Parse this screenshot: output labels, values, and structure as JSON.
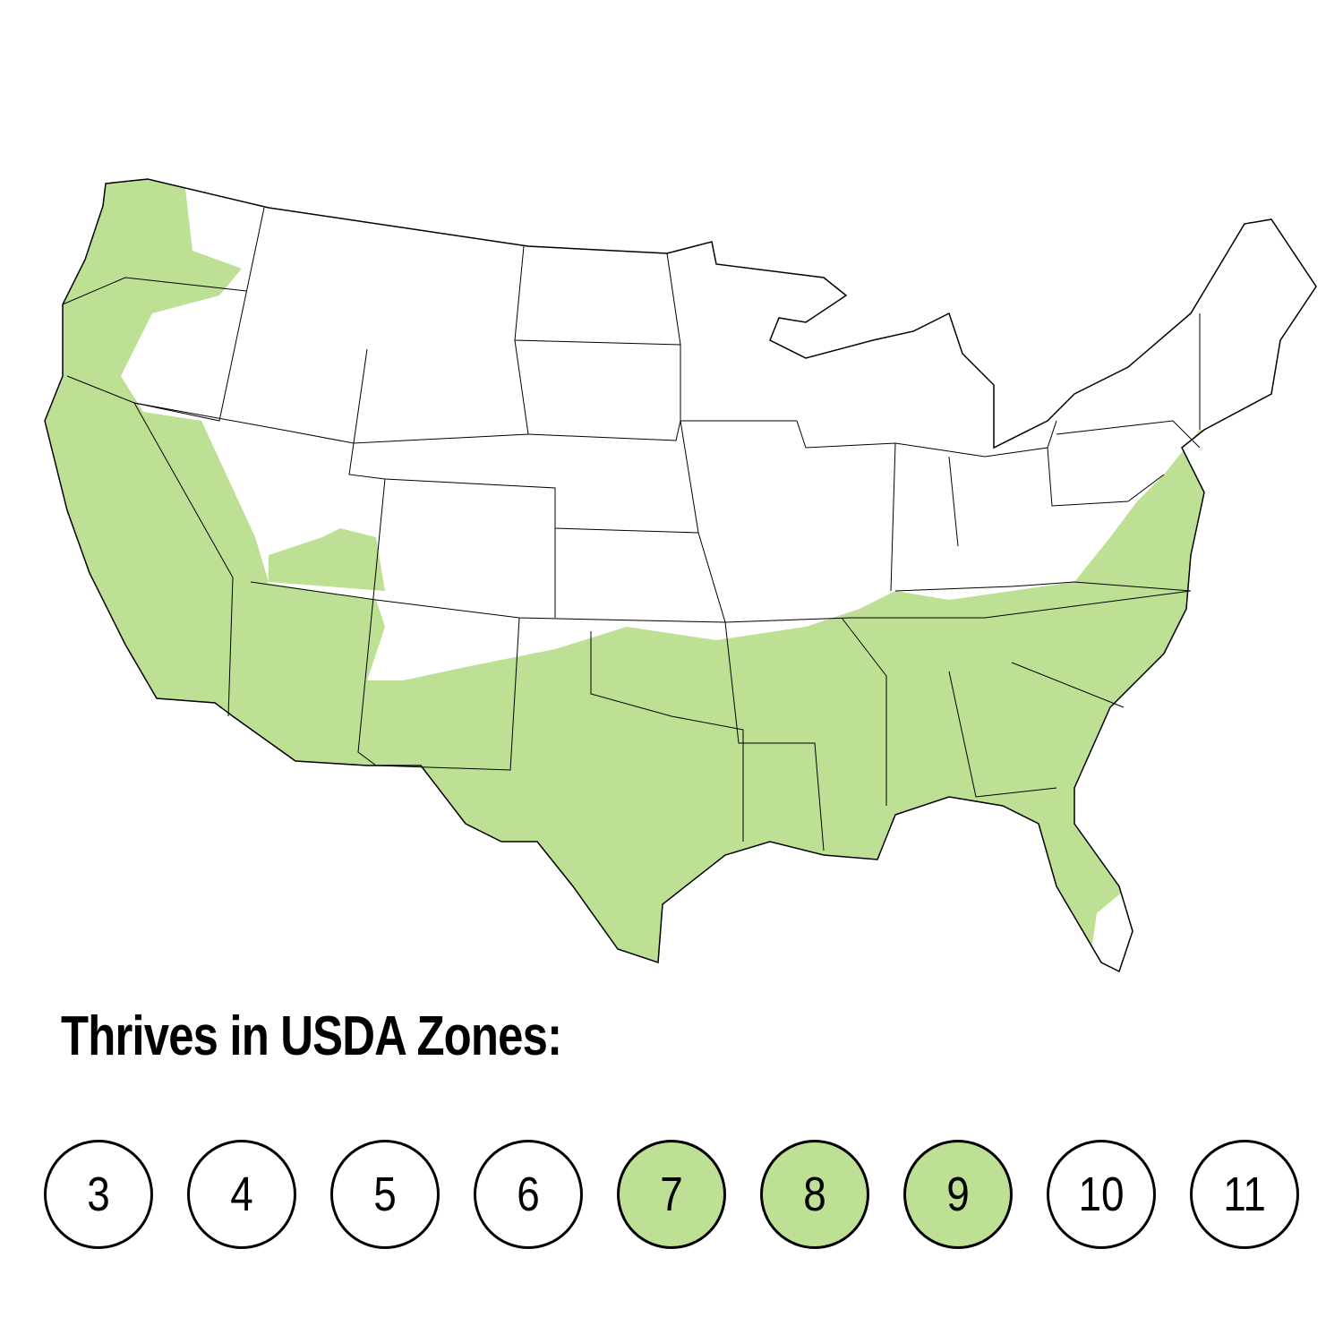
{
  "title": "Thrives in USDA Zones:",
  "colors": {
    "highlight": "#bde094",
    "background": "#ffffff",
    "outline": "#000000"
  },
  "zones": [
    {
      "label": "3",
      "highlighted": false
    },
    {
      "label": "4",
      "highlighted": false
    },
    {
      "label": "5",
      "highlighted": false
    },
    {
      "label": "6",
      "highlighted": false
    },
    {
      "label": "7",
      "highlighted": true
    },
    {
      "label": "8",
      "highlighted": true
    },
    {
      "label": "9",
      "highlighted": true
    },
    {
      "label": "10",
      "highlighted": false
    },
    {
      "label": "11",
      "highlighted": false
    }
  ]
}
